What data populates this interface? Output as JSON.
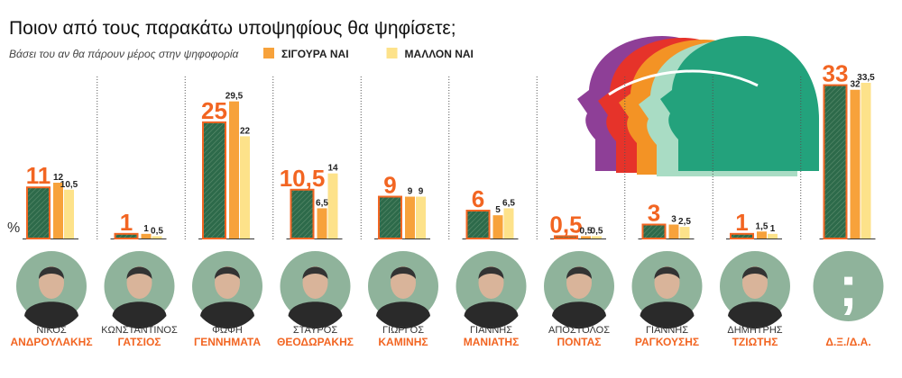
{
  "chart_data": {
    "type": "bar",
    "title": "Ποιον από τους παρακάτω υποψηφίους θα ψηφίσετε;",
    "subtitle": "Βάσει του αν θα πάρουν μέρος στην ψηφοφορία",
    "unit_label": "%",
    "symbol": ";",
    "first_names": [
      "ΝΙΚΟΣ",
      "ΚΩΝΣΤΑΝΤΙΝΟΣ",
      "ΦΩΦΗ",
      "ΣΤΑΥΡΟΣ",
      "ΓΙΩΡΓΟΣ",
      "ΓΙΑΝΝΗΣ",
      "ΑΠΟΣΤΟΛΟΣ",
      "ΓΙΑΝΝΗΣ",
      "ΔΗΜΗΤΡΗΣ",
      null
    ],
    "categories": [
      "ΑΝΔΡΟΥΛΑΚΗΣ",
      "ΓΑΤΣΙΟΣ",
      "ΓΕΝΝΗΜΑΤΑ",
      "ΘΕΟΔΩΡΑΚΗΣ",
      "ΚΑΜΙΝΗΣ",
      "ΜΑΝΙΑΤΗΣ",
      "ΠΟΝΤΑΣ",
      "ΡΑΓΚΟΥΣΗΣ",
      "ΤΖΙΩΤΗΣ",
      "Δ.Ξ./Δ.Α."
    ],
    "series": [
      {
        "color": "#2d6a4a",
        "values": [
          11,
          1,
          25,
          10.5,
          9,
          6,
          0.5,
          3,
          1,
          33
        ],
        "value_labels": [
          "11",
          "1",
          "25",
          "10,5",
          "9",
          "6",
          "0,5",
          "3",
          "1",
          "33"
        ]
      },
      {
        "name": "ΣΙΓΟΥΡΑ ΝΑΙ",
        "color": "#f7a23b",
        "values": [
          12,
          1,
          29.5,
          6.5,
          9,
          5,
          0.5,
          3,
          1.5,
          32
        ],
        "value_labels": [
          "12",
          "1",
          "29,5",
          "6,5",
          "9",
          "5",
          "0,5",
          "3",
          "1,5",
          "32"
        ]
      },
      {
        "name": "ΜΑΛΛΟΝ ΝΑΙ",
        "color": "#fde28a",
        "values": [
          10.5,
          0.5,
          22,
          14,
          9,
          6.5,
          0.5,
          2.5,
          1,
          33.5
        ],
        "value_labels": [
          "10,5",
          "0,5",
          "22",
          "14",
          "9",
          "6,5",
          "0,5",
          "2,5",
          "1",
          "33,5"
        ]
      }
    ]
  }
}
